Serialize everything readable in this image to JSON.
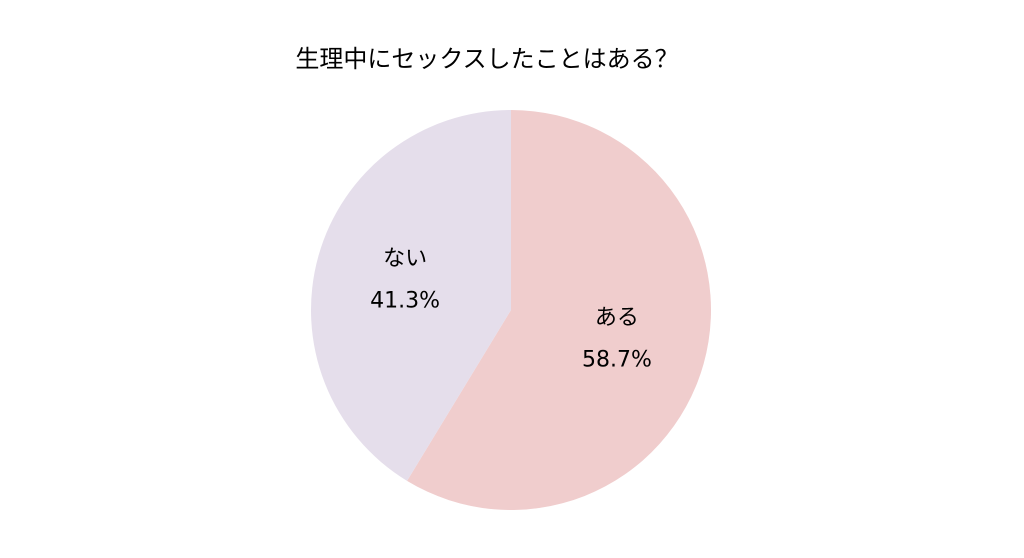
{
  "chart_data": {
    "type": "pie",
    "title": "生理中にセックスしたことはある？",
    "categories": [
      "ある",
      "ない"
    ],
    "values": [
      58.7,
      41.3
    ],
    "value_labels": [
      "58.7%",
      "41.3%"
    ],
    "colors": [
      "#f0cdcd",
      "#e5deeb"
    ]
  }
}
